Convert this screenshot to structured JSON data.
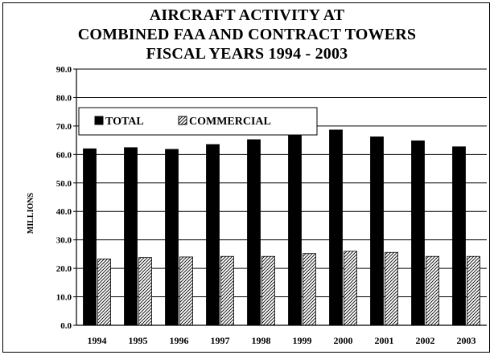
{
  "chart_data": {
    "type": "bar",
    "title_lines": [
      "AIRCRAFT ACTIVITY AT",
      "COMBINED FAA AND CONTRACT TOWERS",
      "FISCAL YEARS 1994 - 2003"
    ],
    "xlabel": "",
    "ylabel": "MILLIONS",
    "ylim": [
      0,
      90
    ],
    "yticks": [
      "0.0",
      "10.0",
      "20.0",
      "30.0",
      "40.0",
      "50.0",
      "60.0",
      "70.0",
      "80.0",
      "90.0"
    ],
    "grid": true,
    "legend_position": "top-left",
    "categories": [
      "1994",
      "1995",
      "1996",
      "1997",
      "1998",
      "1999",
      "2000",
      "2001",
      "2002",
      "2003"
    ],
    "series": [
      {
        "name": "TOTAL",
        "color": "#000000",
        "pattern": "solid",
        "values": [
          62.0,
          62.4,
          61.8,
          63.5,
          65.2,
          68.0,
          68.6,
          66.2,
          64.8,
          62.7
        ]
      },
      {
        "name": "COMMERCIAL",
        "color": "#ffffff",
        "pattern": "hatch",
        "values": [
          23.3,
          23.8,
          24.0,
          24.2,
          24.2,
          25.2,
          26.0,
          25.6,
          24.2,
          24.2
        ]
      }
    ]
  }
}
